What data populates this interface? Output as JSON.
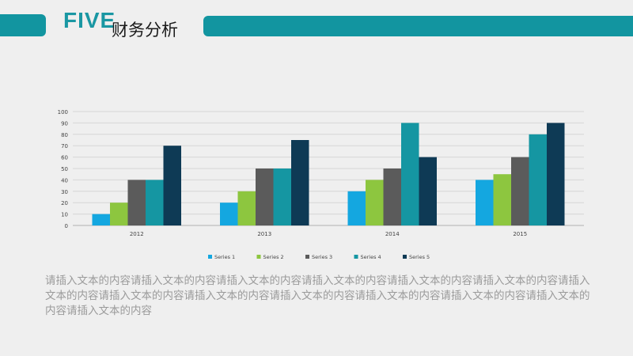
{
  "header": {
    "title_en": "FIVE",
    "title_cn": "财务分析",
    "accent_color": "#1295a0"
  },
  "body_text": "请插入文本的内容请插入文本的内容请插入文本的内容请插入文本的内容请插入文本的内容请插入文本的内容请插入文本的内容请插入文本的内容请插入文本的内容请插入文本的内容请插入文本的内容请插入文本的内容请插入文本的内容请插入文本的内容",
  "chart_data": {
    "type": "bar",
    "categories": [
      "2012",
      "2013",
      "2014",
      "2015"
    ],
    "ylim": [
      0,
      100
    ],
    "yticks": [
      0,
      10,
      20,
      30,
      40,
      50,
      60,
      70,
      80,
      90,
      100
    ],
    "grid": true,
    "legend_position": "bottom",
    "series": [
      {
        "name": "Series 1",
        "color": "#14a7e0",
        "values": [
          10,
          20,
          30,
          40
        ]
      },
      {
        "name": "Series 2",
        "color": "#8dc63f",
        "values": [
          20,
          30,
          40,
          45
        ]
      },
      {
        "name": "Series 3",
        "color": "#5b5b5b",
        "values": [
          40,
          50,
          50,
          60
        ]
      },
      {
        "name": "Series 4",
        "color": "#1596a2",
        "values": [
          40,
          50,
          90,
          80
        ]
      },
      {
        "name": "Series 5",
        "color": "#0e3a55",
        "values": [
          70,
          75,
          60,
          90
        ]
      }
    ]
  }
}
